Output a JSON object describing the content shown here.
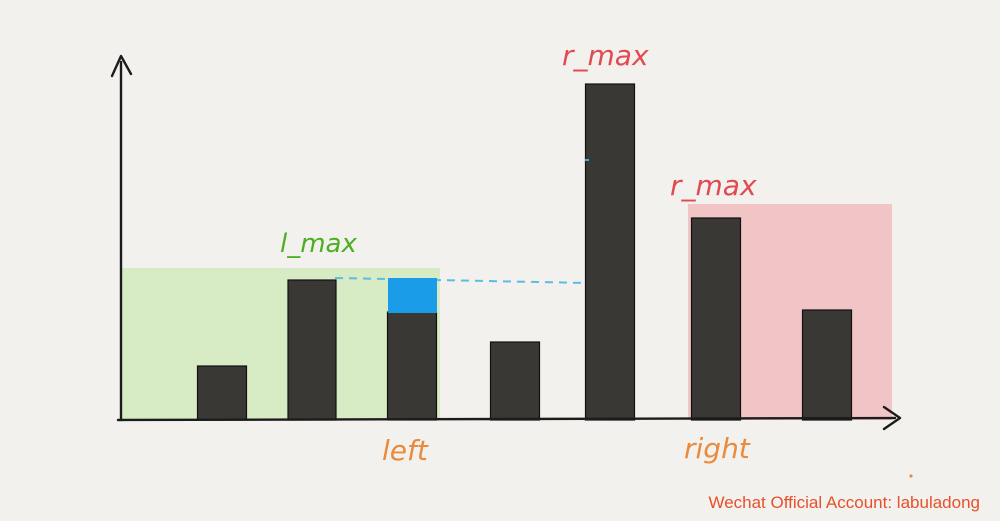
{
  "labels": {
    "l_max": "l_max",
    "r_max_top": "r_max",
    "r_max_right": "r_max",
    "left": "left",
    "right": "right"
  },
  "watermark": "Wechat Official Account: labuladong",
  "colors": {
    "background": "#f2f1ee",
    "bar": "#3a3835",
    "l_max_region": "#d7ebc4",
    "r_max_region": "#f1c4c6",
    "water": "#1a9ce8",
    "dash": "#5bbde3",
    "label_green": "#4caf22",
    "label_red": "#e04a50",
    "label_orange": "#e98a3c",
    "watermark": "#e8502a",
    "axis": "#1c1c1c"
  },
  "chart_data": {
    "type": "bar",
    "bar_heights": [
      54,
      140,
      108,
      78,
      336,
      202,
      110
    ],
    "water_level": 140,
    "left_index": 2,
    "right_index": 5
  }
}
